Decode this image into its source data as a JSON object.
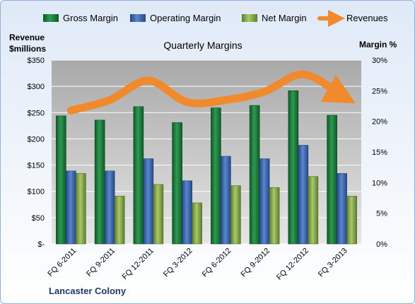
{
  "chart_data": {
    "type": "bar",
    "title": "Quarterly Margins",
    "categories": [
      "FQ 6-2011",
      "FQ 9-2011",
      "FQ 12-2011",
      "FQ 3-2012",
      "FQ 6-2012",
      "FQ 9-2012",
      "FQ 12-2012",
      "FQ 3-2013"
    ],
    "series": [
      {
        "name": "Gross Margin",
        "axis": "right",
        "kind": "bar",
        "color": "#1e7a3c",
        "values": [
          20.9,
          20.2,
          22.4,
          19.8,
          22.2,
          22.6,
          25.0,
          21.0
        ]
      },
      {
        "name": "Operating Margin",
        "axis": "right",
        "kind": "bar",
        "color": "#3f6cb4",
        "values": [
          11.9,
          11.9,
          13.9,
          10.3,
          14.3,
          13.9,
          16.1,
          11.5
        ]
      },
      {
        "name": "Net Margin",
        "axis": "right",
        "kind": "bar",
        "color": "#8db152",
        "values": [
          11.5,
          7.8,
          9.7,
          6.7,
          9.5,
          9.2,
          11.0,
          7.8
        ]
      },
      {
        "name": "Revenues",
        "axis": "left",
        "kind": "line",
        "color": "#f08a2c",
        "values": [
          254,
          274,
          311,
          270,
          274,
          290,
          323,
          282
        ]
      }
    ],
    "y_left": {
      "label_line1": "Revenue",
      "label_line2": "$millions",
      "range": [
        0,
        350
      ],
      "ticks": [
        0,
        50,
        100,
        150,
        200,
        250,
        300,
        350
      ],
      "tick_labels": [
        "$-",
        "$50",
        "$100",
        "$150",
        "$200",
        "$250",
        "$300",
        "$350"
      ]
    },
    "y_right": {
      "label": "Margin %",
      "range": [
        0,
        30
      ],
      "ticks": [
        0,
        5,
        10,
        15,
        20,
        25,
        30
      ],
      "tick_labels": [
        "0%",
        "5%",
        "10%",
        "15%",
        "20%",
        "25%",
        "30%"
      ]
    },
    "legend_position": "top",
    "grid": true
  },
  "footer_label": "Lancaster Colony",
  "colors": {
    "plot_bg_top": "#aeaeae",
    "plot_bg_bottom": "#e3e3e3",
    "grid": "#ffffff",
    "frame_border": "#8fb0d8"
  }
}
